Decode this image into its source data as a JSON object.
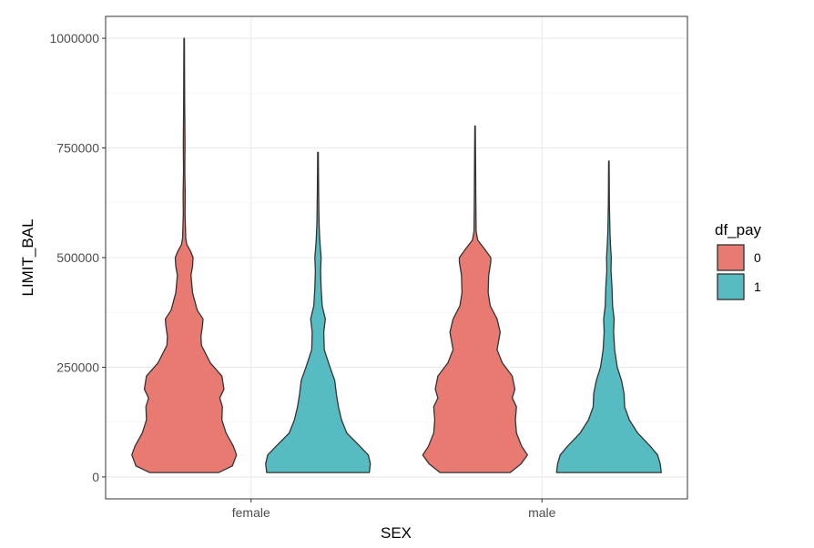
{
  "chart_data": {
    "type": "violin",
    "xlabel": "SEX",
    "ylabel": "LIMIT_BAL",
    "categories": [
      "female",
      "male"
    ],
    "ylim": [
      -50000,
      1050000
    ],
    "yticks": [
      0,
      250000,
      500000,
      750000,
      1000000
    ],
    "ytick_labels": [
      "0",
      "250000",
      "500000",
      "750000",
      "1000000"
    ],
    "grid": true,
    "legend": {
      "title": "df_pay",
      "position": "right",
      "entries": [
        {
          "label": "0",
          "color": "#E87A72"
        },
        {
          "label": "1",
          "color": "#56BCC2"
        }
      ]
    },
    "series": [
      {
        "group": "0",
        "category": "female",
        "color": "#E87A72",
        "min": 10000,
        "max": 1000000,
        "density": [
          [
            10000,
            0.66
          ],
          [
            25000,
            0.92
          ],
          [
            50000,
            1.0
          ],
          [
            70000,
            0.94
          ],
          [
            100000,
            0.8
          ],
          [
            130000,
            0.72
          ],
          [
            160000,
            0.73
          ],
          [
            180000,
            0.68
          ],
          [
            200000,
            0.76
          ],
          [
            230000,
            0.72
          ],
          [
            260000,
            0.5
          ],
          [
            300000,
            0.33
          ],
          [
            320000,
            0.32
          ],
          [
            345000,
            0.35
          ],
          [
            360000,
            0.36
          ],
          [
            380000,
            0.25
          ],
          [
            420000,
            0.16
          ],
          [
            460000,
            0.13
          ],
          [
            480000,
            0.16
          ],
          [
            500000,
            0.17
          ],
          [
            515000,
            0.12
          ],
          [
            530000,
            0.05
          ],
          [
            545000,
            0.03
          ],
          [
            600000,
            0.016
          ],
          [
            640000,
            0.02
          ],
          [
            700000,
            0.012
          ],
          [
            760000,
            0.016
          ],
          [
            850000,
            0.01
          ],
          [
            1000000,
            0.005
          ]
        ]
      },
      {
        "group": "1",
        "category": "female",
        "color": "#56BCC2",
        "min": 10000,
        "max": 740000,
        "density": [
          [
            10000,
            0.98
          ],
          [
            30000,
            1.0
          ],
          [
            50000,
            0.96
          ],
          [
            70000,
            0.8
          ],
          [
            100000,
            0.55
          ],
          [
            130000,
            0.45
          ],
          [
            160000,
            0.39
          ],
          [
            190000,
            0.35
          ],
          [
            220000,
            0.32
          ],
          [
            250000,
            0.23
          ],
          [
            290000,
            0.12
          ],
          [
            330000,
            0.11
          ],
          [
            360000,
            0.14
          ],
          [
            390000,
            0.08
          ],
          [
            430000,
            0.06
          ],
          [
            470000,
            0.05
          ],
          [
            500000,
            0.06
          ],
          [
            530000,
            0.04
          ],
          [
            550000,
            0.03
          ],
          [
            580000,
            0.02
          ],
          [
            650000,
            0.012
          ],
          [
            740000,
            0.006
          ]
        ]
      },
      {
        "group": "0",
        "category": "male",
        "color": "#E87A72",
        "min": 10000,
        "max": 800000,
        "density": [
          [
            10000,
            0.67
          ],
          [
            30000,
            0.88
          ],
          [
            50000,
            1.0
          ],
          [
            70000,
            0.89
          ],
          [
            100000,
            0.79
          ],
          [
            130000,
            0.77
          ],
          [
            160000,
            0.79
          ],
          [
            180000,
            0.71
          ],
          [
            200000,
            0.76
          ],
          [
            230000,
            0.71
          ],
          [
            260000,
            0.52
          ],
          [
            290000,
            0.42
          ],
          [
            330000,
            0.48
          ],
          [
            360000,
            0.42
          ],
          [
            390000,
            0.29
          ],
          [
            420000,
            0.25
          ],
          [
            460000,
            0.26
          ],
          [
            490000,
            0.3
          ],
          [
            500000,
            0.3
          ],
          [
            520000,
            0.18
          ],
          [
            540000,
            0.05
          ],
          [
            560000,
            0.02
          ],
          [
            620000,
            0.015
          ],
          [
            700000,
            0.011
          ],
          [
            800000,
            0.005
          ]
        ]
      },
      {
        "group": "1",
        "category": "male",
        "color": "#56BCC2",
        "min": 10000,
        "max": 720000,
        "density": [
          [
            10000,
            1.0
          ],
          [
            30000,
            0.98
          ],
          [
            50000,
            0.93
          ],
          [
            70000,
            0.79
          ],
          [
            100000,
            0.55
          ],
          [
            130000,
            0.39
          ],
          [
            160000,
            0.3
          ],
          [
            190000,
            0.29
          ],
          [
            220000,
            0.24
          ],
          [
            250000,
            0.16
          ],
          [
            290000,
            0.11
          ],
          [
            330000,
            0.09
          ],
          [
            360000,
            0.1
          ],
          [
            390000,
            0.07
          ],
          [
            430000,
            0.06
          ],
          [
            470000,
            0.04
          ],
          [
            500000,
            0.045
          ],
          [
            530000,
            0.03
          ],
          [
            560000,
            0.02
          ],
          [
            620000,
            0.01
          ],
          [
            720000,
            0.005
          ]
        ]
      }
    ]
  }
}
